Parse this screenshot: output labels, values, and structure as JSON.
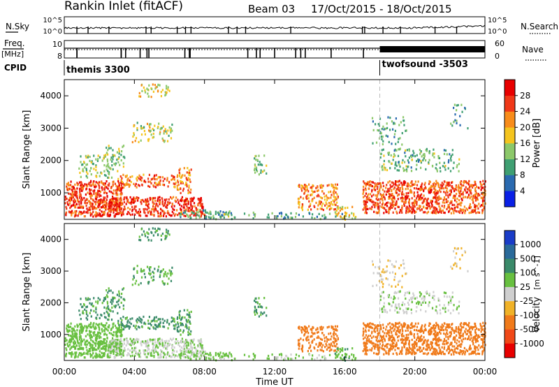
{
  "chart_data": {
    "type": "heatmap",
    "header": {
      "site": "Rankin Inlet (fitACF)",
      "beam": "Beam 03",
      "dates": "17/Oct/2015 - 18/Oct/2015"
    },
    "top_panels": {
      "nsky_label": "N.Sky",
      "nsearch_label": "N.Search",
      "noise_ticks": [
        "10^5",
        "10^0"
      ],
      "freq_label": "Freq.",
      "freq_unit": "[MHz]",
      "freq_ticks": [
        "10",
        "8"
      ],
      "nave_label": "Nave",
      "nave_ticks": [
        "60",
        "0"
      ],
      "cpid_label": "CPID",
      "cpid_programs": [
        {
          "name": "themis 3300",
          "start_hour": 0
        },
        {
          "name": "twofsound -3503",
          "start_hour": 18
        }
      ]
    },
    "x_axis": {
      "label": "Time UT",
      "ticks": [
        "00:00",
        "04:00",
        "08:00",
        "12:00",
        "16:00",
        "20:00",
        "00:00"
      ],
      "range_hours": [
        0,
        24
      ]
    },
    "y_axis": {
      "label": "Slant Range [km]",
      "ticks": [
        "1000",
        "2000",
        "3000",
        "4000"
      ],
      "range_km": [
        180,
        4500
      ]
    },
    "power_panel": {
      "quantity": "Power [dB]",
      "colorbar_ticks": [
        "4",
        "8",
        "12",
        "16",
        "20",
        "24",
        "28"
      ],
      "colorbar_colors": [
        "#0a20e6",
        "#2a6ab0",
        "#3f9f72",
        "#8cc86a",
        "#f4c41e",
        "#f88c1a",
        "#f03818",
        "#e80000"
      ],
      "colorbar_range": [
        0,
        32
      ]
    },
    "velocity_panel": {
      "quantity": "Velocity",
      "quantity_unit": "[m s^-1]",
      "colorbar_ticks": [
        "1000",
        "500",
        "100",
        "25",
        "-25",
        "-100",
        "-500",
        "-1000"
      ],
      "colorbar_colors": [
        "#1a3cc8",
        "#2a6a9a",
        "#3a8a6a",
        "#68c040",
        "#cfcfcf",
        "#f0b228",
        "#f07a1a",
        "#f04818",
        "#e80000"
      ]
    },
    "scatter_regions": [
      {
        "t": [
          0.0,
          3.3
        ],
        "r": [
          300,
          1400
        ],
        "power": 26,
        "velocity": 60,
        "density": 0.85
      },
      {
        "t": [
          2.5,
          8.0
        ],
        "r": [
          300,
          900
        ],
        "power": 27,
        "velocity": 20,
        "density": 0.7
      },
      {
        "t": [
          3.0,
          6.5
        ],
        "r": [
          1200,
          1600
        ],
        "power": 24,
        "velocity": 120,
        "density": 0.5
      },
      {
        "t": [
          6.4,
          7.2
        ],
        "r": [
          1000,
          1800
        ],
        "power": 22,
        "velocity": 130,
        "density": 0.5
      },
      {
        "t": [
          2.2,
          3.4
        ],
        "r": [
          1700,
          2500
        ],
        "power": 14,
        "velocity": 110,
        "density": 0.35
      },
      {
        "t": [
          3.8,
          6.2
        ],
        "r": [
          2600,
          3200
        ],
        "power": 16,
        "velocity": 90,
        "density": 0.3
      },
      {
        "t": [
          4.2,
          6.0
        ],
        "r": [
          4000,
          4400
        ],
        "power": 17,
        "velocity": 120,
        "density": 0.35
      },
      {
        "t": [
          6.5,
          9.5
        ],
        "r": [
          250,
          500
        ],
        "power": 12,
        "velocity": 40,
        "density": 0.5
      },
      {
        "t": [
          8.0,
          16.0
        ],
        "r": [
          220,
          420
        ],
        "power": 10,
        "velocity": 40,
        "density": 0.25
      },
      {
        "t": [
          10.8,
          11.5
        ],
        "r": [
          1600,
          2200
        ],
        "power": 13,
        "velocity": 110,
        "density": 0.4
      },
      {
        "t": [
          13.3,
          15.6
        ],
        "r": [
          500,
          1300
        ],
        "power": 22,
        "velocity": -220,
        "density": 0.55
      },
      {
        "t": [
          15.4,
          16.6
        ],
        "r": [
          200,
          600
        ],
        "power": 18,
        "velocity": 80,
        "density": 0.45
      },
      {
        "t": [
          17.0,
          24.0
        ],
        "r": [
          400,
          1400
        ],
        "power": 25,
        "velocity": -320,
        "density": 0.75
      },
      {
        "t": [
          18.0,
          22.5
        ],
        "r": [
          1700,
          2400
        ],
        "power": 12,
        "velocity": 20,
        "density": 0.3
      },
      {
        "t": [
          17.5,
          19.5
        ],
        "r": [
          2500,
          3400
        ],
        "power": 11,
        "velocity": -20,
        "density": 0.2
      },
      {
        "t": [
          22.0,
          23.0
        ],
        "r": [
          3000,
          3800
        ],
        "power": 10,
        "velocity": -30,
        "density": 0.15
      },
      {
        "t": [
          0.8,
          2.8
        ],
        "r": [
          1500,
          2200
        ],
        "power": 13,
        "velocity": 120,
        "density": 0.3
      }
    ]
  }
}
